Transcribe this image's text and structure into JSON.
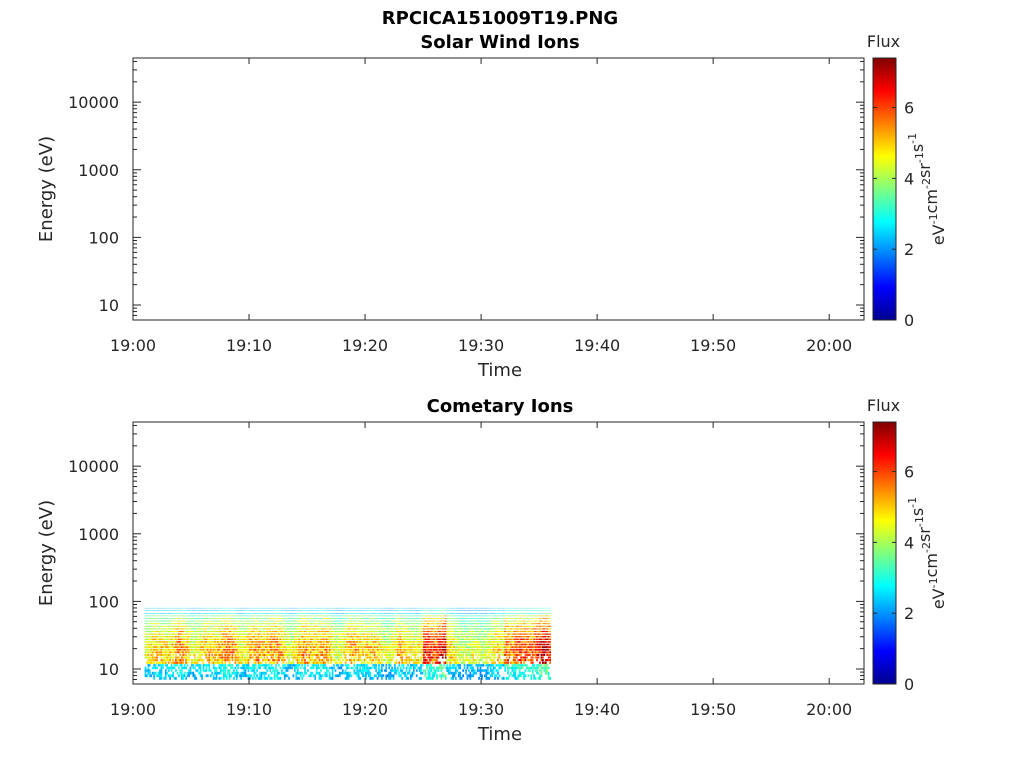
{
  "figure_title": "RPCICA151009T19.PNG",
  "chart_data": [
    {
      "type": "heatmap",
      "title": "Solar Wind Ions",
      "xlabel": "Time",
      "ylabel": "Energy (eV)",
      "xticks": [
        "19:00",
        "19:10",
        "19:20",
        "19:30",
        "19:40",
        "19:50",
        "20:00"
      ],
      "xlim": [
        "19:00",
        "20:03"
      ],
      "yscale": "log",
      "yticks": [
        "10",
        "100",
        "1000",
        "10000"
      ],
      "ylim": [
        6,
        45000
      ],
      "colorbar": {
        "title": "Flux",
        "unit_base": [
          "eV",
          "cm",
          "sr",
          "s"
        ],
        "unit_exp": [
          "-1",
          "-2",
          "-1",
          "-1"
        ],
        "ticks": [
          "0",
          "2",
          "4",
          "6"
        ],
        "range": [
          0,
          7.4
        ]
      },
      "data_present": false,
      "segments": []
    },
    {
      "type": "heatmap",
      "title": "Cometary Ions",
      "xlabel": "Time",
      "ylabel": "Energy (eV)",
      "xticks": [
        "19:00",
        "19:10",
        "19:20",
        "19:30",
        "19:40",
        "19:50",
        "20:00"
      ],
      "xlim": [
        "19:00",
        "20:03"
      ],
      "yscale": "log",
      "yticks": [
        "10",
        "100",
        "1000",
        "10000"
      ],
      "ylim": [
        6,
        45000
      ],
      "colorbar": {
        "title": "Flux",
        "unit_base": [
          "eV",
          "cm",
          "sr",
          "s"
        ],
        "unit_exp": [
          "-1",
          "-2",
          "-1",
          "-1"
        ],
        "ticks": [
          "0",
          "2",
          "4",
          "6"
        ],
        "range": [
          0,
          7.4
        ]
      },
      "data_present": true,
      "data_time_range": [
        "19:01",
        "19:36"
      ],
      "data_energy_range": [
        7,
        80
      ],
      "segments": [
        {
          "t_start": "19:01",
          "t_end": "19:07",
          "peak_flux": 5.6
        },
        {
          "t_start": "19:07",
          "t_end": "19:12",
          "peak_flux": 5.8
        },
        {
          "t_start": "19:12",
          "t_end": "19:17",
          "peak_flux": 5.7
        },
        {
          "t_start": "19:17",
          "t_end": "19:22",
          "peak_flux": 5.5
        },
        {
          "t_start": "19:22",
          "t_end": "19:25",
          "peak_flux": 5.3
        },
        {
          "t_start": "19:25",
          "t_end": "19:27",
          "peak_flux": 7.2
        },
        {
          "t_start": "19:27",
          "t_end": "19:32",
          "peak_flux": 5.0
        },
        {
          "t_start": "19:32",
          "t_end": "19:36",
          "peak_flux": 6.8
        }
      ]
    }
  ]
}
